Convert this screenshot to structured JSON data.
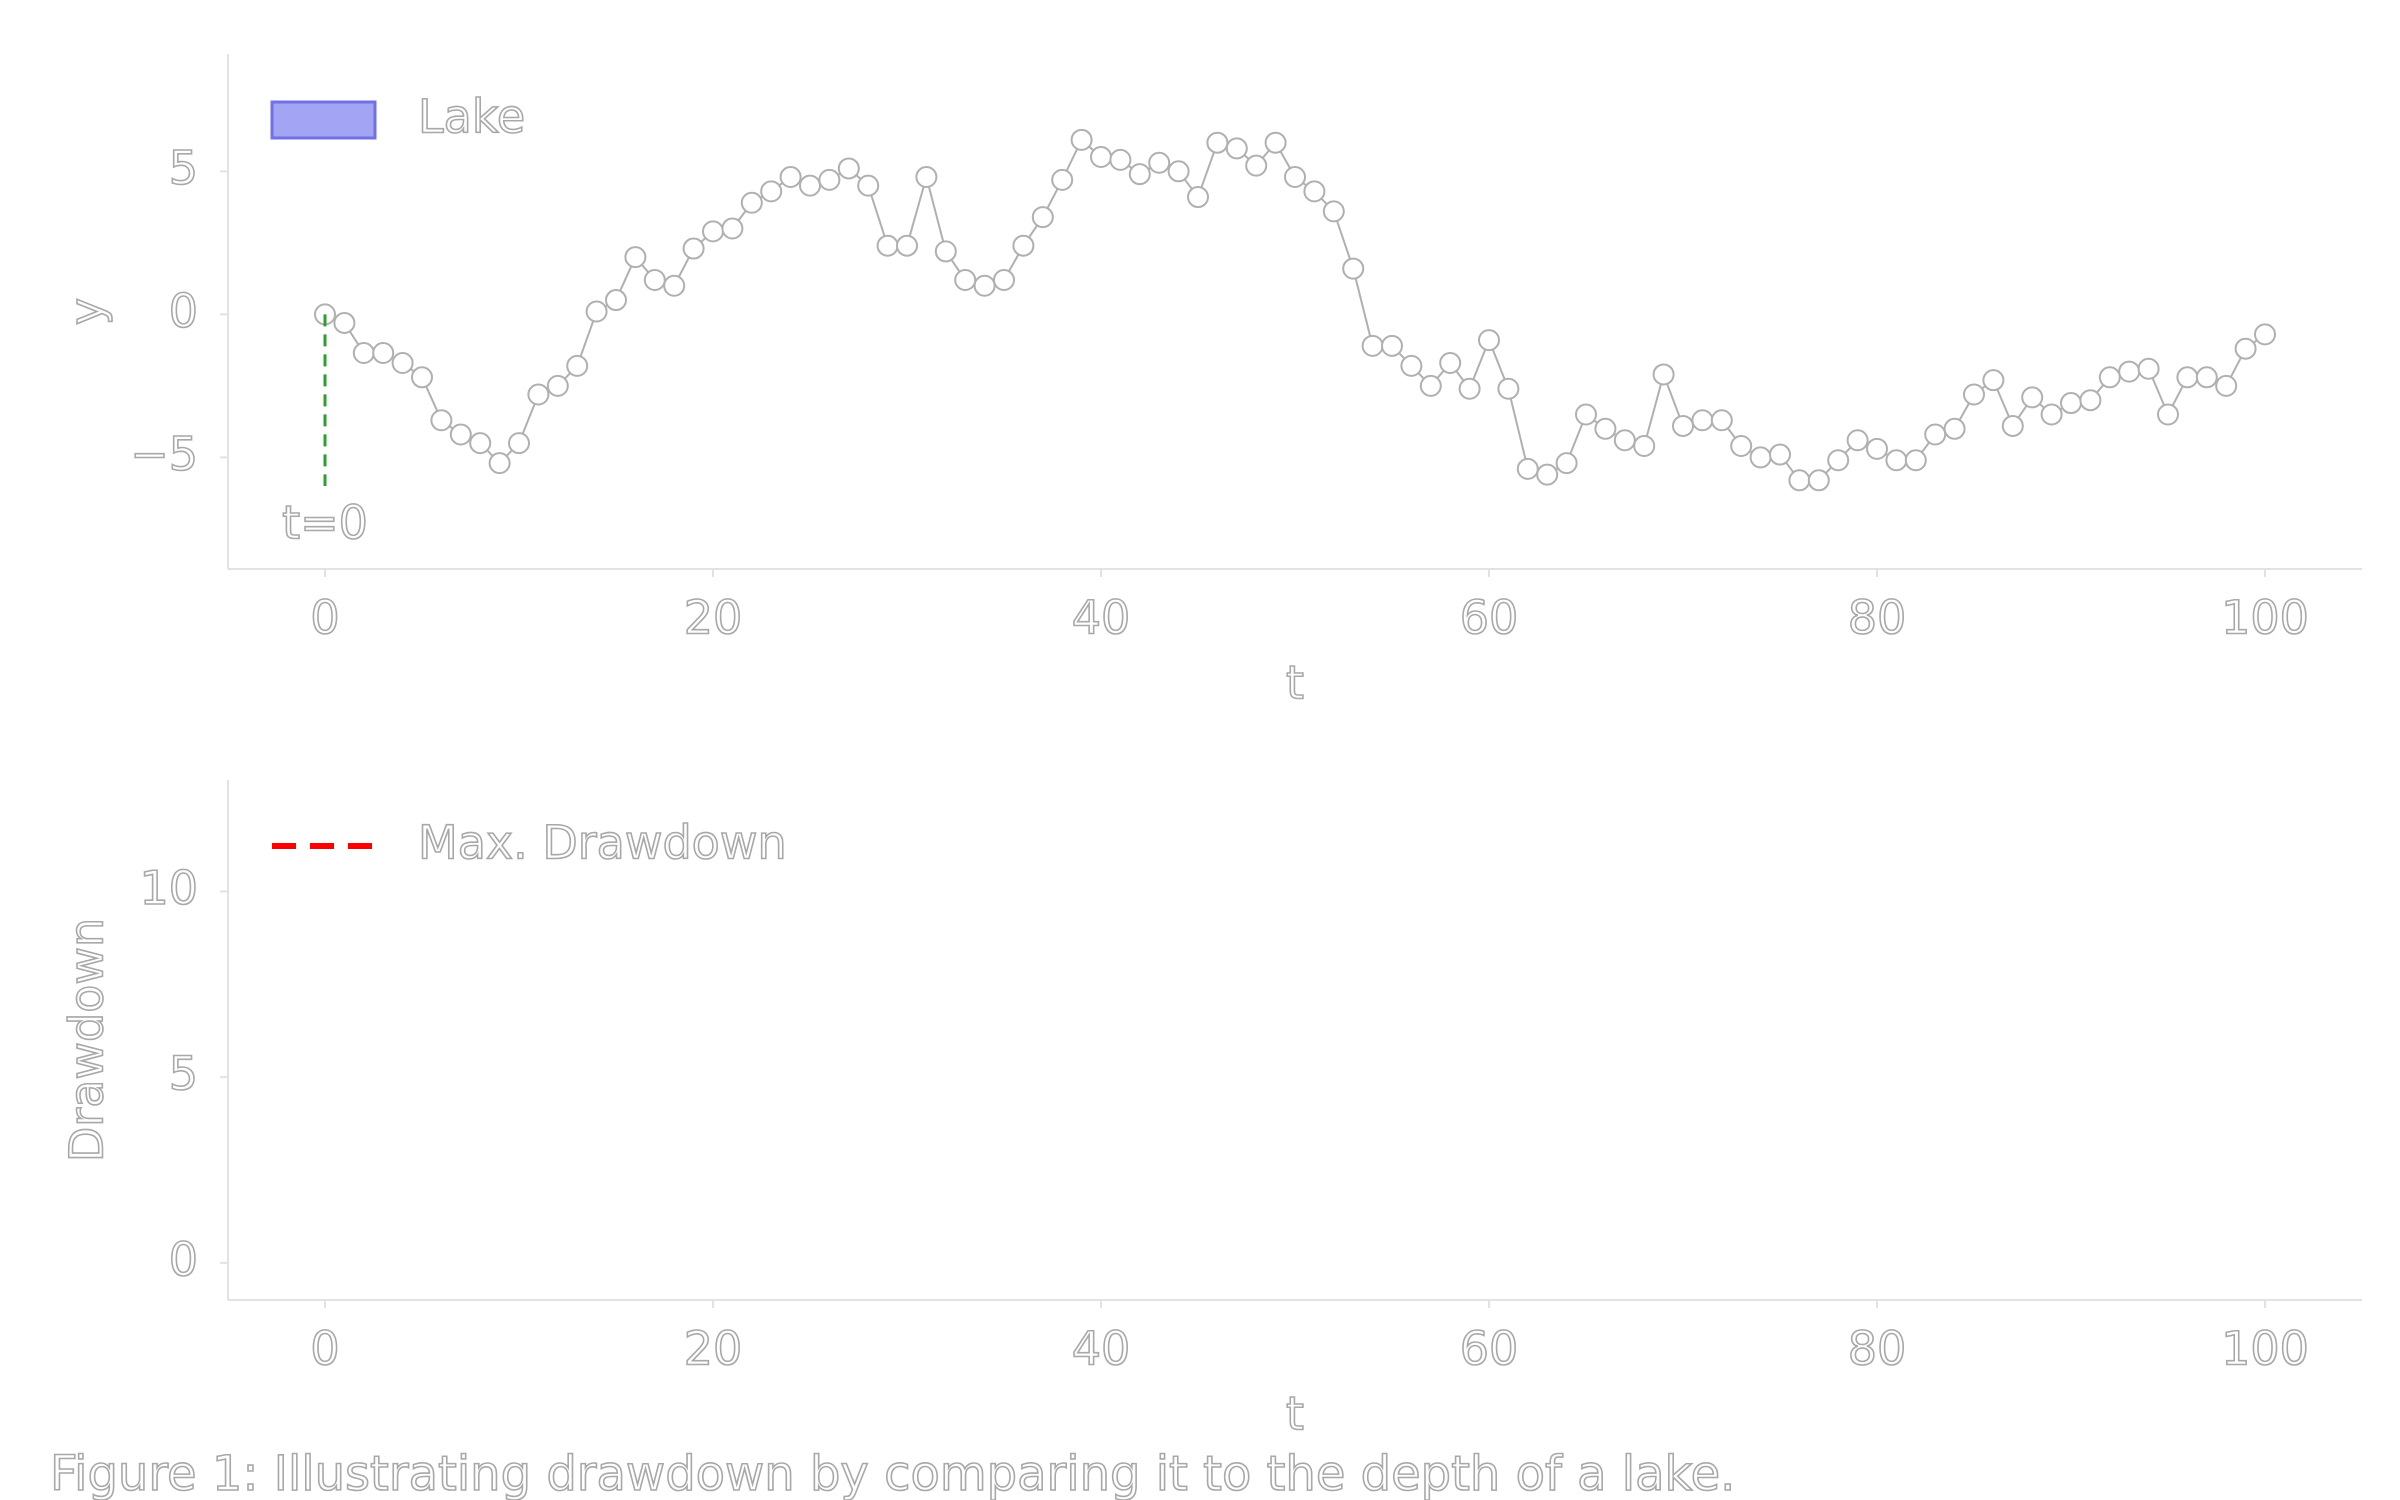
{
  "chart_data": [
    {
      "type": "line",
      "xlabel": "t",
      "ylabel": "y",
      "x": [
        0,
        1,
        2,
        3,
        4,
        5,
        6,
        7,
        8,
        9,
        10,
        11,
        12,
        13,
        14,
        15,
        16,
        17,
        18,
        19,
        20,
        21,
        22,
        23,
        24,
        25,
        26,
        27,
        28,
        29,
        30,
        31,
        32,
        33,
        34,
        35,
        36,
        37,
        38,
        39,
        40,
        41,
        42,
        43,
        44,
        45,
        46,
        47,
        48,
        49,
        50,
        51,
        52,
        53,
        54,
        55,
        56,
        57,
        58,
        59,
        60,
        61,
        62,
        63,
        64,
        65,
        66,
        67,
        68,
        69,
        70,
        71,
        72,
        73,
        74,
        75,
        76,
        77,
        78,
        79,
        80,
        81,
        82,
        83,
        84,
        85,
        86,
        87,
        88,
        89,
        90,
        91,
        92,
        93,
        94,
        95,
        96,
        97,
        98,
        99,
        100
      ],
      "values": [
        0,
        -0.3,
        -1.35,
        -1.35,
        -1.7,
        -2.2,
        -3.7,
        -4.2,
        -4.5,
        -5.2,
        -4.5,
        -2.8,
        -2.5,
        -1.8,
        0.1,
        0.5,
        2.0,
        1.2,
        1.0,
        2.3,
        2.9,
        3.0,
        3.9,
        4.3,
        4.8,
        4.5,
        4.7,
        5.1,
        4.5,
        2.4,
        2.4,
        4.8,
        2.2,
        1.2,
        1.0,
        1.2,
        2.4,
        3.4,
        4.7,
        6.1,
        5.5,
        5.4,
        4.9,
        5.3,
        5.0,
        4.1,
        6.0,
        5.8,
        5.2,
        6.0,
        4.8,
        4.3,
        3.6,
        1.6,
        -1.1,
        -1.1,
        -1.8,
        -2.5,
        -1.7,
        -2.6,
        -0.9,
        -2.6,
        -5.4,
        -5.6,
        -5.2,
        -3.5,
        -4.0,
        -4.4,
        -4.6,
        -2.1,
        -3.9,
        -3.7,
        -3.7,
        -4.6,
        -5.0,
        -4.9,
        -5.8,
        -5.8,
        -5.1,
        -4.4,
        -4.7,
        -5.1,
        -5.1,
        -4.2,
        -4.0,
        -2.8,
        -2.3,
        -3.9,
        -2.9,
        -3.5,
        -3.1,
        -3.0,
        -2.2,
        -2.0,
        -1.9,
        -3.5,
        -2.2,
        -2.2,
        -2.5,
        -1.2,
        -0.7
      ],
      "color": "#b0b0b0",
      "xlim": [
        -5,
        105
      ],
      "ylim": [
        -8.9,
        9.1
      ],
      "xticks": [
        0,
        20,
        40,
        60,
        80,
        100
      ],
      "yticks": [
        {
          "value": -5,
          "label": "−5"
        },
        0,
        5
      ],
      "legend": [
        {
          "name": "Lake",
          "color": "#a4a4f4",
          "style": "patch"
        }
      ],
      "vline": {
        "x": 0,
        "y": [
          0,
          -6
        ],
        "color": "#2ca02c"
      },
      "annotation": {
        "text": "t=0",
        "x": 0,
        "y": -7.4
      }
    },
    {
      "type": "line",
      "xlabel": "t",
      "ylabel": "Drawdown",
      "xlim": [
        -5,
        105
      ],
      "ylim": [
        -1,
        13
      ],
      "xticks": [
        0,
        20,
        40,
        60,
        80,
        100
      ],
      "yticks": [
        0,
        5,
        10
      ],
      "legend": [
        {
          "name": "Max. Drawdown",
          "color": "#ff0000",
          "style": "dashed"
        }
      ]
    }
  ],
  "caption": "Figure 1: Illustrating drawdown by comparing it to the depth of a lake."
}
